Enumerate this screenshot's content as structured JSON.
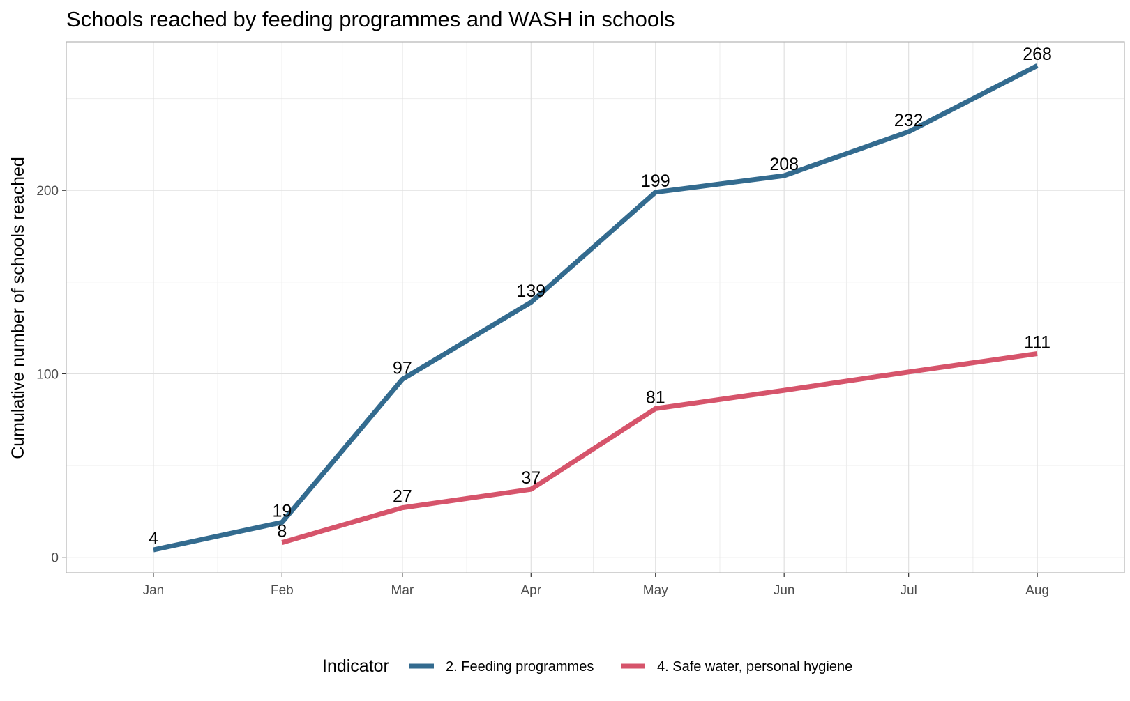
{
  "chart_data": {
    "type": "line",
    "title": "Schools reached by feeding programmes and WASH in schools",
    "xlabel": "",
    "ylabel": "Cumulative number of schools reached",
    "ylim": [
      -8.5,
      281
    ],
    "y_ticks": [
      0,
      100,
      200
    ],
    "y_tick_labels": [
      "0",
      "100",
      "200"
    ],
    "x_ticks": [
      "2024-01-01",
      "2024-02-01",
      "2024-03-01",
      "2024-04-01",
      "2024-05-01",
      "2024-06-01",
      "2024-07-01",
      "2024-08-01"
    ],
    "x_tick_labels": [
      "Jan",
      "Feb",
      "Mar",
      "Apr",
      "May",
      "Jun",
      "Jul",
      "Aug"
    ],
    "xlim": [
      "2023-12-11",
      "2024-08-22"
    ],
    "grid": true,
    "legend": {
      "title": "Indicator",
      "position": "bottom"
    },
    "series": [
      {
        "name": "2. Feeding programmes",
        "color": "#336b8f",
        "x": [
          "2024-01-01",
          "2024-02-01",
          "2024-03-01",
          "2024-04-01",
          "2024-05-01",
          "2024-06-01",
          "2024-07-01",
          "2024-08-01"
        ],
        "values": [
          4,
          19,
          97,
          139,
          199,
          208,
          232,
          268
        ],
        "labels": [
          "4",
          "19",
          "97",
          "139",
          "199",
          "208",
          "232",
          "268"
        ]
      },
      {
        "name": "4. Safe water, personal hygiene",
        "color": "#d6546b",
        "x": [
          "2024-02-01",
          "2024-03-01",
          "2024-04-01",
          "2024-05-01",
          "2024-06-01",
          "2024-07-01",
          "2024-08-01"
        ],
        "values": [
          8,
          27,
          37,
          81,
          91,
          101,
          111
        ],
        "labels": [
          "8",
          "27",
          "37",
          "81",
          "",
          "",
          "111"
        ]
      }
    ]
  }
}
